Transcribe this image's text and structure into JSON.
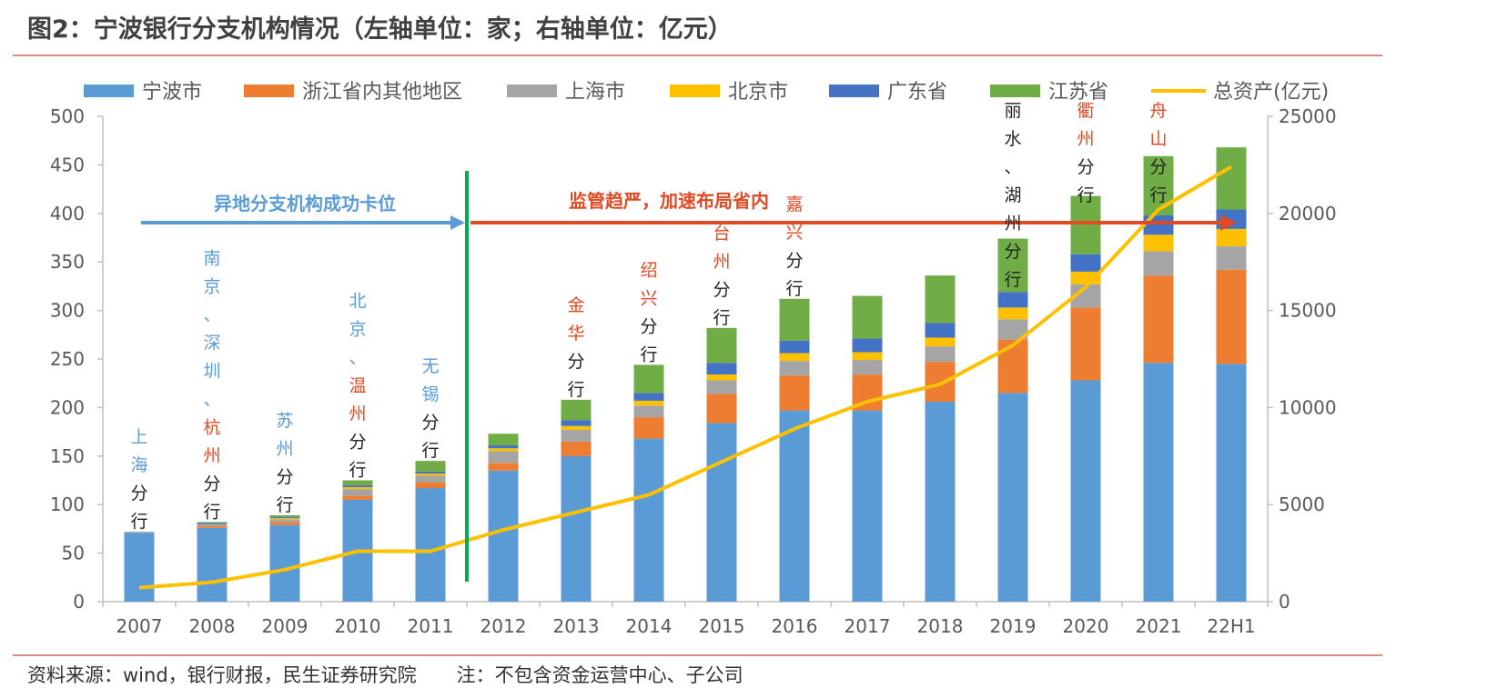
{
  "figure": {
    "title": "图2：宁波银行分支机构情况（左轴单位：家；右轴单位：亿元）",
    "source": "资料来源：wind，银行财报，民生证券研究院",
    "note": "注：不包含资金运营中心、子公司"
  },
  "chart_data": {
    "type": "bar",
    "stacked": true,
    "categories": [
      "2007",
      "2008",
      "2009",
      "2010",
      "2011",
      "2012",
      "2013",
      "2014",
      "2015",
      "2016",
      "2017",
      "2018",
      "2019",
      "2020",
      "2021",
      "22H1"
    ],
    "series": [
      {
        "name": "宁波市",
        "color": "#5b9bd5",
        "values": [
          71,
          76,
          79,
          105,
          117,
          135,
          150,
          168,
          184,
          197,
          197,
          206,
          215,
          228,
          246,
          245
        ]
      },
      {
        "name": "浙江省内其他地区",
        "color": "#ed7d31",
        "values": [
          0,
          2,
          3,
          4,
          6,
          8,
          15,
          22,
          30,
          36,
          37,
          41,
          55,
          75,
          90,
          97
        ]
      },
      {
        "name": "上海市",
        "color": "#a5a5a5",
        "values": [
          1,
          2,
          3,
          7,
          7,
          12,
          12,
          12,
          14,
          15,
          15,
          16,
          21,
          24,
          25,
          24
        ]
      },
      {
        "name": "北京市",
        "color": "#ffc000",
        "values": [
          0,
          0,
          1,
          2,
          2,
          3,
          4,
          5,
          6,
          8,
          8,
          9,
          12,
          13,
          17,
          18
        ]
      },
      {
        "name": "广东省",
        "color": "#4472c4",
        "values": [
          0,
          1,
          1,
          2,
          2,
          3,
          6,
          8,
          12,
          13,
          14,
          15,
          16,
          18,
          20,
          20
        ]
      },
      {
        "name": "江苏省",
        "color": "#70ad47",
        "values": [
          0,
          1,
          2,
          5,
          11,
          12,
          21,
          29,
          36,
          43,
          44,
          49,
          55,
          60,
          61,
          64
        ]
      }
    ],
    "line": {
      "name": "总资产(亿元)",
      "color": "#ffc000",
      "axis": "right",
      "values": [
        720,
        1000,
        1650,
        2600,
        2600,
        3700,
        4600,
        5500,
        7200,
        8900,
        10300,
        11200,
        13200,
        16200,
        20200,
        22400
      ]
    },
    "yleft": {
      "min": 0,
      "max": 500,
      "step": 50
    },
    "yright": {
      "min": 0,
      "max": 25000,
      "step": 5000
    },
    "legend_position": "top",
    "grid": false,
    "annotations": {
      "divider_after_index": 4.5,
      "phase1": {
        "label": "异地分支机构成功卡位",
        "color": "#5b9bd5"
      },
      "phase2": {
        "label": "监管趋严，加速布局省内",
        "color": "#e04a24"
      },
      "branch_labels": [
        {
          "index": 0,
          "segments": [
            {
              "text": "上海",
              "color": "#5b9bd5"
            },
            {
              "text": "分行",
              "color": "#222222"
            }
          ]
        },
        {
          "index": 1,
          "segments": [
            {
              "text": "南京",
              "color": "#5b9bd5"
            },
            {
              "text": "、",
              "color": "#5b9bd5"
            },
            {
              "text": "深圳",
              "color": "#5b9bd5"
            },
            {
              "text": "、",
              "color": "#5b9bd5"
            },
            {
              "text": "杭州",
              "color": "#e04a24"
            },
            {
              "text": "分行",
              "color": "#222222"
            }
          ]
        },
        {
          "index": 2,
          "segments": [
            {
              "text": "苏州",
              "color": "#5b9bd5"
            },
            {
              "text": "分行",
              "color": "#222222"
            }
          ]
        },
        {
          "index": 3,
          "segments": [
            {
              "text": "北京",
              "color": "#5b9bd5"
            },
            {
              "text": "、",
              "color": "#5b9bd5"
            },
            {
              "text": "温州",
              "color": "#e04a24"
            },
            {
              "text": "分行",
              "color": "#222222"
            }
          ]
        },
        {
          "index": 4,
          "segments": [
            {
              "text": "无锡",
              "color": "#5b9bd5"
            },
            {
              "text": "分行",
              "color": "#222222"
            }
          ]
        },
        {
          "index": 6,
          "segments": [
            {
              "text": "金华",
              "color": "#e04a24"
            },
            {
              "text": "分行",
              "color": "#222222"
            }
          ]
        },
        {
          "index": 7,
          "segments": [
            {
              "text": "绍兴",
              "color": "#e04a24"
            },
            {
              "text": "分行",
              "color": "#222222"
            }
          ]
        },
        {
          "index": 8,
          "segments": [
            {
              "text": "台州",
              "color": "#e04a24"
            },
            {
              "text": "分行",
              "color": "#222222"
            }
          ]
        },
        {
          "index": 9,
          "segments": [
            {
              "text": "嘉兴",
              "color": "#e04a24"
            },
            {
              "text": "分行",
              "color": "#222222"
            }
          ]
        },
        {
          "index": 12,
          "segments": [
            {
              "text": "丽水",
              "color": "#222222"
            },
            {
              "text": "、",
              "color": "#222222"
            },
            {
              "text": "湖州",
              "color": "#222222"
            },
            {
              "text": "分行",
              "color": "#222222"
            }
          ]
        },
        {
          "index": 13,
          "segments": [
            {
              "text": "衢州",
              "color": "#e04a24"
            },
            {
              "text": "分行",
              "color": "#222222"
            }
          ]
        },
        {
          "index": 14,
          "segments": [
            {
              "text": "舟山",
              "color": "#e04a24"
            },
            {
              "text": "分行",
              "color": "#222222"
            }
          ]
        }
      ]
    }
  }
}
